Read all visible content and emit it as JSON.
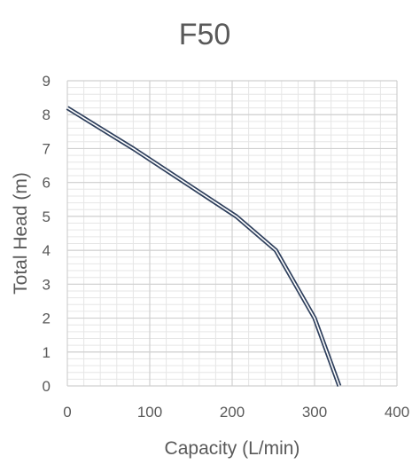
{
  "chart_data": {
    "type": "line",
    "title": "F50",
    "xlabel": "Capacity (L/min)",
    "ylabel": "Total Head (m)",
    "xlim": [
      0,
      400
    ],
    "ylim": [
      0,
      9
    ],
    "x_ticks": [
      0,
      100,
      200,
      300,
      400
    ],
    "y_ticks": [
      0,
      1,
      2,
      3,
      4,
      5,
      6,
      7,
      8,
      9
    ],
    "grid": true,
    "minor_grid": true,
    "legend": "none",
    "series": [
      {
        "x": [
          0,
          80,
          205,
          253,
          300,
          330
        ],
        "y": [
          8.2,
          7.0,
          5.0,
          4.0,
          2.0,
          0.0
        ],
        "color": "#2e3f5c",
        "style": "double-line"
      }
    ]
  },
  "colors": {
    "background": "#ffffff",
    "major_grid": "#d0d0d0",
    "minor_grid": "#e6e6e6",
    "text": "#595959",
    "title": "#595959",
    "series": "#2e3f5c"
  }
}
